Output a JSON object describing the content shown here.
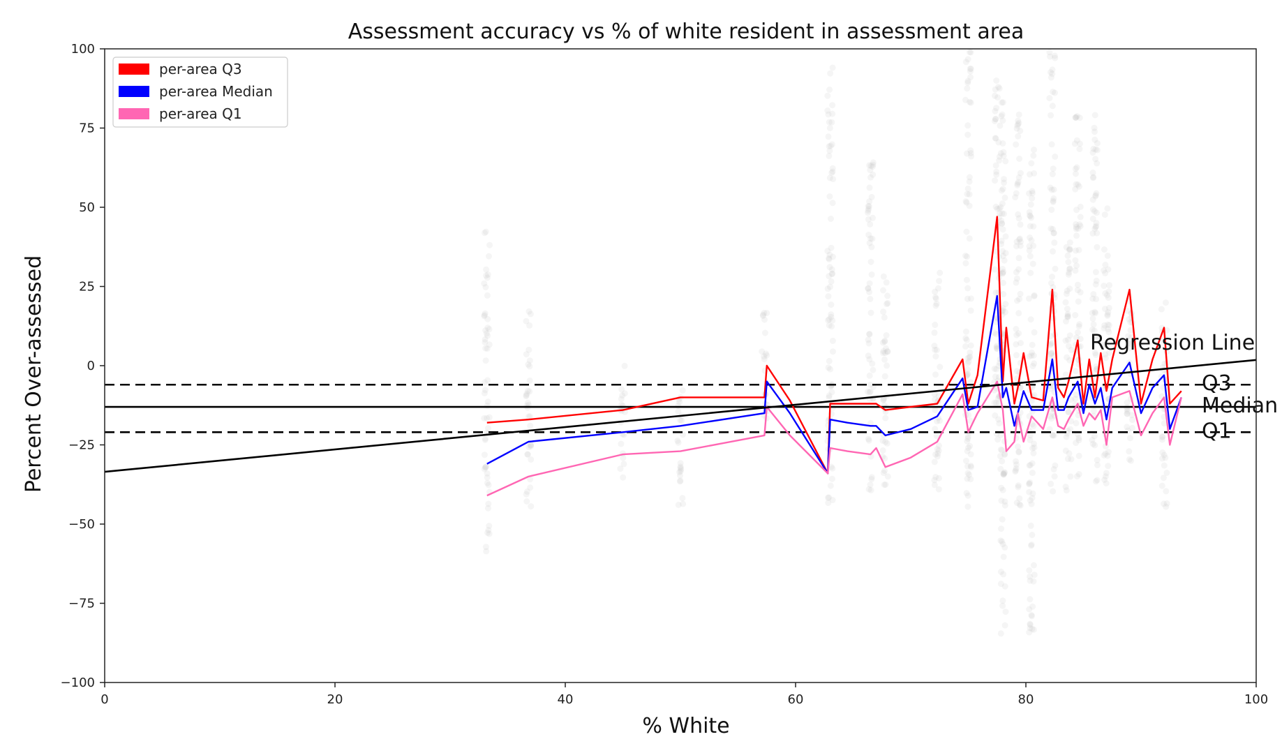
{
  "chart_data": {
    "type": "line",
    "title": "Assessment accuracy vs % of white resident in assessment area",
    "xlabel": "% White",
    "ylabel": "Percent Over-assessed",
    "xlim": [
      0,
      100
    ],
    "ylim": [
      -100,
      100
    ],
    "xticks": [
      0,
      20,
      40,
      60,
      80,
      100
    ],
    "yticks": [
      100,
      75,
      50,
      25,
      0,
      -25,
      -50,
      -75,
      -100
    ],
    "yticklabels": [
      "100",
      "75",
      "50",
      "25",
      "0",
      "−25",
      "−50",
      "−75",
      "−100"
    ],
    "grid": false,
    "legend": {
      "position": "top-left",
      "entries": [
        {
          "name": "per-area Q3",
          "color": "#ff0000"
        },
        {
          "name": "per-area Median",
          "color": "#0000ff"
        },
        {
          "name": "per-area Q1",
          "color": "#ff66b3"
        }
      ]
    },
    "series": [
      {
        "name": "per-area Q3",
        "color": "#ff0000",
        "x": [
          33.2,
          36.8,
          45,
          50,
          57.3,
          57.5,
          59.5,
          62.8,
          63,
          64.5,
          66.5,
          67,
          67.8,
          70,
          72.3,
          74.5,
          75,
          75.8,
          77.5,
          78,
          78.3,
          79,
          79.3,
          79.8,
          80.5,
          81.5,
          82.3,
          82.8,
          83.3,
          83.7,
          84.5,
          85,
          85.5,
          86,
          86.5,
          87,
          87.5,
          89,
          90,
          91,
          92,
          92.5,
          93.5
        ],
        "y": [
          -18,
          -17,
          -14,
          -10,
          -10,
          0,
          -11,
          -34,
          -12,
          -12,
          -12,
          -12,
          -14,
          -13,
          -12,
          2,
          -12,
          -3,
          47,
          -5,
          12,
          -12,
          -7,
          4,
          -10,
          -11,
          24,
          -7,
          -10,
          -5,
          8,
          -12,
          2,
          -10,
          4,
          -8,
          2,
          24,
          -12,
          2,
          12,
          -12,
          -8
        ]
      },
      {
        "name": "per-area Median",
        "color": "#0000ff",
        "x": [
          33.2,
          36.8,
          45,
          50,
          57.3,
          57.5,
          59.5,
          62.8,
          63,
          64.5,
          66.5,
          67,
          67.8,
          70,
          72.3,
          74.5,
          75,
          75.8,
          77.5,
          78,
          78.3,
          79,
          79.3,
          79.8,
          80.5,
          81.5,
          82.3,
          82.8,
          83.3,
          83.7,
          84.5,
          85,
          85.5,
          86,
          86.5,
          87,
          87.5,
          89,
          90,
          91,
          92,
          92.5,
          93.5
        ],
        "y": [
          -31,
          -24,
          -21,
          -19,
          -15,
          -5,
          -15,
          -34,
          -17,
          -18,
          -19,
          -19,
          -22,
          -20,
          -16,
          -4,
          -14,
          -13,
          22,
          -10,
          -7,
          -19,
          -15,
          -8,
          -14,
          -14,
          2,
          -14,
          -14,
          -10,
          -5,
          -15,
          -6,
          -12,
          -7,
          -17,
          -7,
          1,
          -15,
          -7,
          -3,
          -20,
          -10
        ]
      },
      {
        "name": "per-area Q1",
        "color": "#ff66b3",
        "x": [
          33.2,
          36.8,
          45,
          50,
          57.3,
          57.5,
          59.5,
          62.8,
          63,
          64.5,
          66.5,
          67,
          67.8,
          70,
          72.3,
          74.5,
          75,
          75.8,
          77.5,
          78,
          78.3,
          79,
          79.3,
          79.8,
          80.5,
          81.5,
          82.3,
          82.8,
          83.3,
          83.7,
          84.5,
          85,
          85.5,
          86,
          86.5,
          87,
          87.5,
          89,
          90,
          91,
          92,
          92.5,
          93.5
        ],
        "y": [
          -41,
          -35,
          -28,
          -27,
          -22,
          -13,
          -22,
          -34,
          -26,
          -27,
          -28,
          -26,
          -32,
          -29,
          -24,
          -9,
          -21,
          -15,
          -5,
          -14,
          -27,
          -24,
          -15,
          -24,
          -16,
          -20,
          -10,
          -19,
          -20,
          -17,
          -12,
          -19,
          -15,
          -17,
          -14,
          -25,
          -10,
          -8,
          -22,
          -15,
          -10,
          -25,
          -10
        ]
      }
    ],
    "regression_line": {
      "label": "Regression Line",
      "x": [
        0,
        100
      ],
      "y": [
        -33.5,
        1.8
      ],
      "color": "#000000"
    },
    "reference_lines": [
      {
        "label": "Q3",
        "y": -6,
        "style": "dashed",
        "color": "#000000"
      },
      {
        "label": "Median",
        "y": -13,
        "style": "solid",
        "color": "#000000"
      },
      {
        "label": "Q1",
        "y": -21,
        "style": "dashed",
        "color": "#000000"
      }
    ],
    "scatter_background": {
      "color": "#c8c8c8",
      "columns": [
        {
          "x": 33.2,
          "ymin": -60,
          "ymax": 45
        },
        {
          "x": 36.8,
          "ymin": -45,
          "ymax": 18
        },
        {
          "x": 45,
          "ymin": -38,
          "ymax": 0
        },
        {
          "x": 50,
          "ymin": -45,
          "ymax": -2
        },
        {
          "x": 57.3,
          "ymin": -20,
          "ymax": 18
        },
        {
          "x": 63,
          "ymin": -45,
          "ymax": 95
        },
        {
          "x": 66.5,
          "ymin": -40,
          "ymax": 65
        },
        {
          "x": 67.8,
          "ymin": -45,
          "ymax": 30
        },
        {
          "x": 72.3,
          "ymin": -40,
          "ymax": 30
        },
        {
          "x": 75,
          "ymin": -45,
          "ymax": 100
        },
        {
          "x": 77.5,
          "ymin": -30,
          "ymax": 90
        },
        {
          "x": 78,
          "ymin": -85,
          "ymax": 85
        },
        {
          "x": 79.3,
          "ymin": -45,
          "ymax": 80
        },
        {
          "x": 80.5,
          "ymin": -85,
          "ymax": 70
        },
        {
          "x": 82.3,
          "ymin": -40,
          "ymax": 100
        },
        {
          "x": 83.7,
          "ymin": -40,
          "ymax": 40
        },
        {
          "x": 84.5,
          "ymin": -35,
          "ymax": 80
        },
        {
          "x": 86,
          "ymin": -40,
          "ymax": 80
        },
        {
          "x": 87,
          "ymin": -40,
          "ymax": 50
        },
        {
          "x": 89,
          "ymin": -35,
          "ymax": 25
        },
        {
          "x": 92,
          "ymin": -45,
          "ymax": 20
        }
      ]
    }
  }
}
